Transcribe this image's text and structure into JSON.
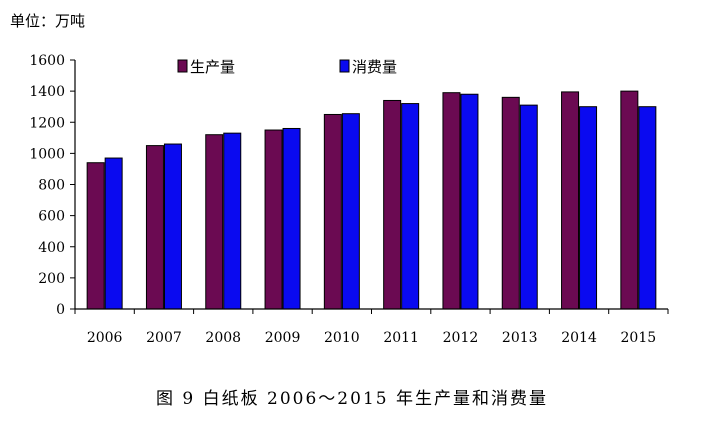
{
  "unit_label": "单位：万吨",
  "caption": "图 9   白纸板 2006～2015 年生产量和消费量",
  "colors": {
    "production": "#6b0a52",
    "consumption": "#0a0af0"
  },
  "chart_data": {
    "type": "bar",
    "categories": [
      "2006",
      "2007",
      "2008",
      "2009",
      "2010",
      "2011",
      "2012",
      "2013",
      "2014",
      "2015"
    ],
    "series": [
      {
        "name": "生产量",
        "values": [
          940,
          1050,
          1120,
          1150,
          1250,
          1340,
          1390,
          1360,
          1395,
          1400
        ]
      },
      {
        "name": "消费量",
        "values": [
          970,
          1060,
          1130,
          1160,
          1255,
          1320,
          1380,
          1310,
          1300,
          1300
        ]
      }
    ],
    "yticks": [
      "0",
      "200",
      "400",
      "600",
      "800",
      "1000",
      "1200",
      "1400",
      "1600"
    ],
    "ylim": [
      0,
      1600
    ],
    "grid": false,
    "legend_position": "top"
  }
}
